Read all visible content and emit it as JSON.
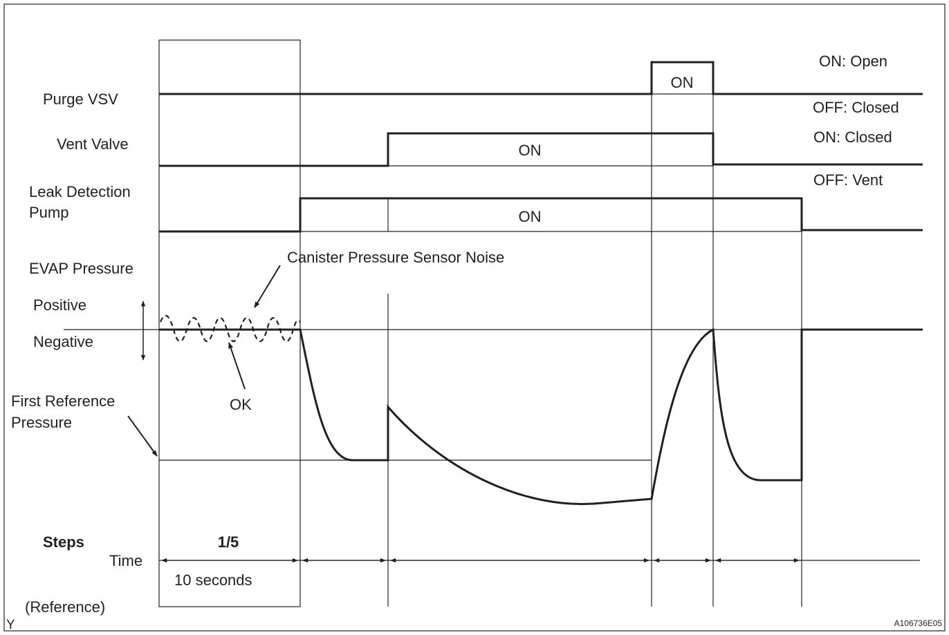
{
  "labels": {
    "purge_vsv": "Purge VSV",
    "vent_valve": "Vent Valve",
    "leak_detection_1": "Leak Detection",
    "leak_detection_2": "Pump",
    "evap_pressure": "EVAP Pressure",
    "positive": "Positive",
    "negative": "Negative",
    "first_ref_1": "First Reference",
    "first_ref_2": "Pressure",
    "steps": "Steps",
    "time": "Time",
    "reference": "(Reference)"
  },
  "states": {
    "purge_on_open": "ON: Open",
    "purge_off_closed": "OFF: Closed",
    "vent_on_closed": "ON: Closed",
    "vent_off_vent": "OFF: Vent",
    "purge_on": "ON",
    "vent_on": "ON",
    "pump_on": "ON"
  },
  "annotations": {
    "noise": "Canister Pressure Sensor Noise",
    "ok": "OK",
    "step_1": "1/5",
    "duration_1": "10 seconds"
  },
  "corner": {
    "left": "Y",
    "right": "A106736E05"
  }
}
